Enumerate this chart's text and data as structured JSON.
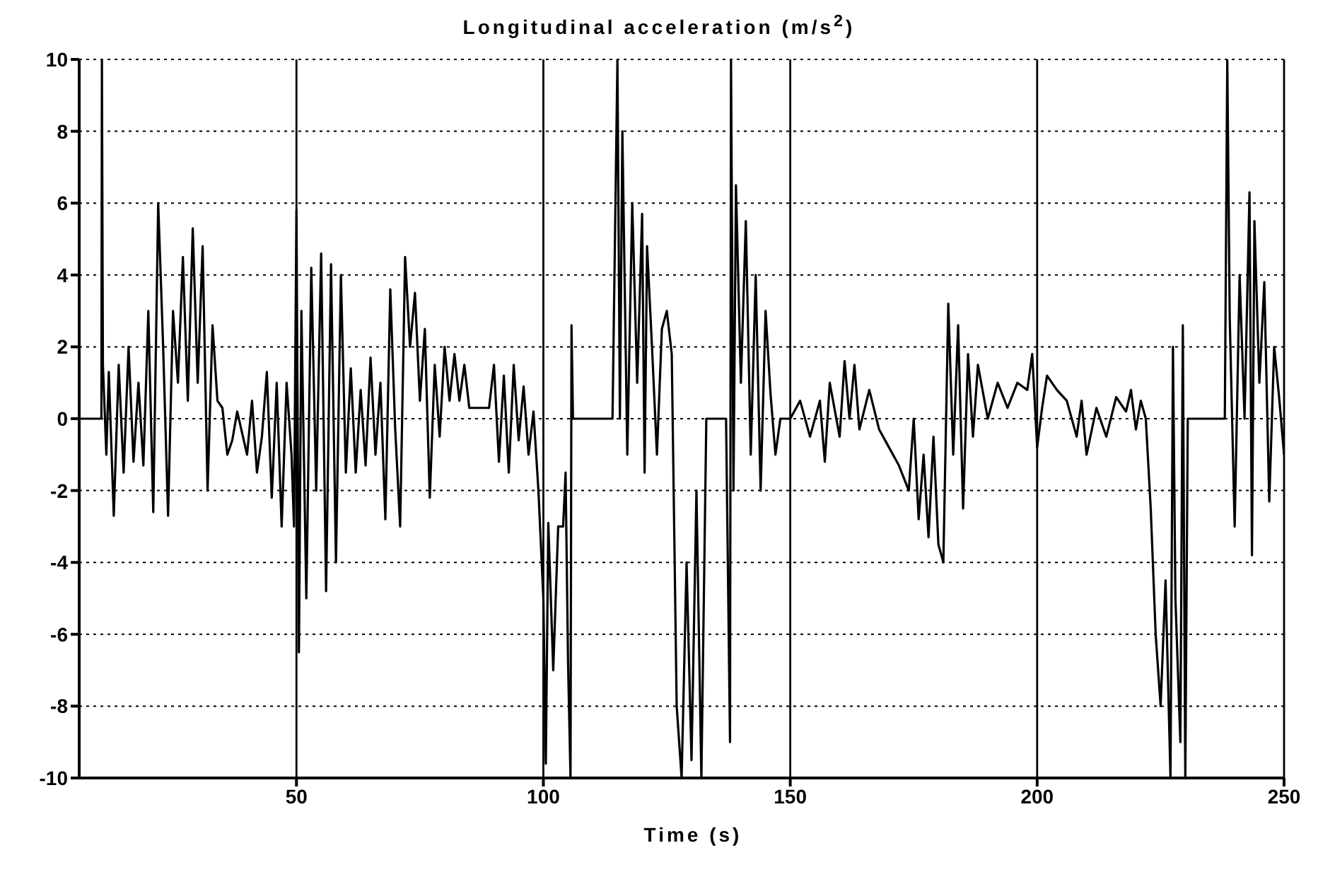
{
  "chart_data": {
    "type": "line",
    "title": "Longitudinal acceleration (m/s$^{2}$)",
    "xlabel": "Time (s)",
    "xlim": [
      6,
      250
    ],
    "xticks": [
      50,
      100,
      150,
      200,
      250
    ],
    "ylim": [
      -10,
      10
    ],
    "yticks": [
      -10,
      -8,
      -6,
      -4,
      -2,
      0,
      2,
      4,
      6,
      8,
      10
    ],
    "grid": true,
    "legend": false,
    "marker": "none",
    "line_style": "solid",
    "series": [
      {
        "color": "#000000",
        "x": [
          6,
          10.5,
          10.6,
          10.8,
          11.5,
          12,
          13,
          14,
          15,
          16,
          17,
          18,
          19,
          20,
          21,
          22,
          23,
          24,
          25,
          26,
          27,
          28,
          29,
          30,
          31,
          32,
          33,
          34,
          35,
          36,
          37,
          38,
          40,
          41,
          42,
          43,
          44,
          45,
          46,
          47,
          48,
          49,
          49.5,
          50,
          50.5,
          51,
          52,
          53,
          54,
          55,
          56,
          57,
          58,
          59,
          60,
          61,
          62,
          63,
          64,
          65,
          66,
          67,
          68,
          69,
          70,
          71,
          72,
          73,
          74,
          75,
          76,
          77,
          78,
          79,
          80,
          81,
          82,
          83,
          84,
          85,
          89,
          90,
          91,
          92,
          93,
          94,
          95,
          96,
          97,
          98,
          99,
          100,
          100.5,
          101,
          102,
          103,
          104,
          104.5,
          105,
          105.5,
          105.7,
          106,
          114,
          115,
          115.5,
          116,
          117,
          118,
          119,
          120,
          120.5,
          121,
          122,
          123,
          124,
          125,
          126,
          127,
          128,
          129,
          130,
          131,
          132,
          133,
          137,
          137.8,
          138,
          138.5,
          139,
          140,
          141,
          142,
          143,
          144,
          145,
          146,
          147,
          148,
          150,
          152,
          154,
          156,
          157,
          158,
          160,
          161,
          162,
          163,
          164,
          166,
          168,
          170,
          172,
          174,
          175,
          176,
          177,
          178,
          179,
          180,
          181,
          182,
          183,
          184,
          185,
          186,
          187,
          188,
          190,
          192,
          194,
          196,
          198,
          199,
          200,
          201,
          202,
          204,
          206,
          208,
          209,
          210,
          212,
          214,
          216,
          218,
          219,
          220,
          221,
          222,
          223,
          224,
          225,
          226,
          227,
          227.5,
          228,
          229,
          229.5,
          230,
          230.5,
          238,
          238.5,
          239,
          240,
          241,
          242,
          243,
          243.5,
          244,
          245,
          246,
          247,
          248,
          249,
          250
        ],
        "values": [
          0,
          0,
          10,
          1.5,
          -1,
          1.3,
          -2.7,
          1.5,
          -1.5,
          2,
          -1.2,
          1,
          -1.3,
          3,
          -2.6,
          6,
          2,
          -2.7,
          3,
          1,
          4.5,
          0.5,
          5.3,
          1,
          4.8,
          -2,
          2.6,
          0.5,
          0.3,
          -1,
          -0.6,
          0.2,
          -1,
          0.5,
          -1.5,
          -0.5,
          1.3,
          -2.2,
          1,
          -3,
          1,
          -1,
          -3,
          5.8,
          -6.5,
          3,
          -5,
          4.2,
          -2,
          4.6,
          -4.8,
          4.3,
          -4,
          4,
          -1.5,
          1.4,
          -1.5,
          0.8,
          -1.3,
          1.7,
          -1,
          1,
          -2.8,
          3.6,
          -0.3,
          -3,
          4.5,
          2,
          3.5,
          0.5,
          2.5,
          -2.2,
          1.5,
          -0.5,
          2,
          0.5,
          1.8,
          0.5,
          1.5,
          0.3,
          0.3,
          1.5,
          -1.2,
          1.2,
          -1.5,
          1.5,
          -0.6,
          0.9,
          -1,
          0.2,
          -2,
          -5,
          -9.6,
          -2.9,
          -7,
          -3,
          -3,
          -1.5,
          -6.8,
          -10,
          2.6,
          0,
          0,
          10,
          0,
          8,
          -1,
          6,
          1,
          5.7,
          -1.5,
          4.8,
          2,
          -1,
          2.5,
          3,
          1.8,
          -8,
          -10,
          -4,
          -9.5,
          -2,
          -10,
          0,
          0,
          -9,
          10,
          -2,
          6.5,
          1,
          5.5,
          -1,
          4,
          -2,
          3,
          0.7,
          -1,
          0,
          0,
          0.5,
          -0.5,
          0.5,
          -1.2,
          1,
          -0.5,
          1.6,
          0,
          1.5,
          -0.3,
          0.8,
          -0.3,
          -0.8,
          -1.3,
          -2,
          0,
          -2.8,
          -1,
          -3.3,
          -0.5,
          -3.5,
          -4,
          3.2,
          -1,
          2.6,
          -2.5,
          1.8,
          -0.5,
          1.5,
          0,
          1,
          0.3,
          1,
          0.8,
          1.8,
          -0.8,
          0.3,
          1.2,
          0.8,
          0.5,
          -0.5,
          0.5,
          -1,
          0.3,
          -0.5,
          0.6,
          0.2,
          0.8,
          -0.3,
          0.5,
          0,
          -2.5,
          -6,
          -8,
          -4.5,
          -10,
          2,
          -5,
          -9,
          2.6,
          -10,
          0,
          0,
          10,
          2.8,
          -3,
          4,
          0,
          6.3,
          -3.8,
          5.5,
          1,
          3.8,
          -2.3,
          2,
          0.6,
          -1
        ]
      }
    ]
  }
}
